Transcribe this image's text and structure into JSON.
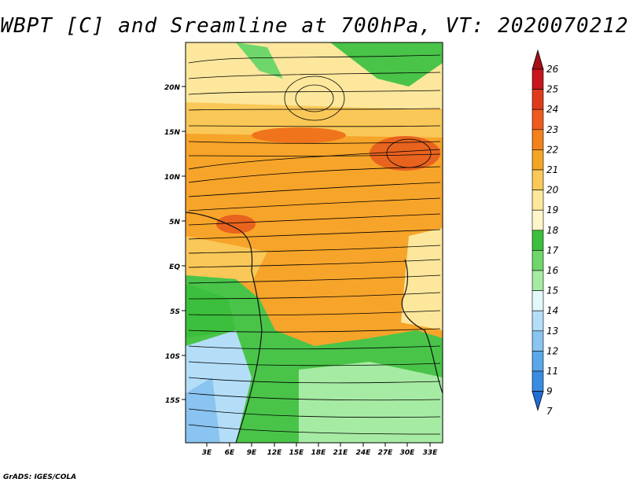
{
  "title": "WBPT [C] and Sreamline at 700hPa, VT: 2020070212",
  "credit": "GrADS: IGES/COLA",
  "map": {
    "lat_labels": [
      "20N",
      "15N",
      "10N",
      "5N",
      "EQ",
      "5S",
      "10S",
      "15S"
    ],
    "lon_labels": [
      "3E",
      "6E",
      "9E",
      "12E",
      "15E",
      "18E",
      "21E",
      "24E",
      "27E",
      "30E",
      "33E"
    ]
  },
  "colorbar": {
    "levels": [
      "26",
      "25",
      "24",
      "23",
      "22",
      "21",
      "20",
      "19",
      "18",
      "17",
      "16",
      "15",
      "14",
      "13",
      "12",
      "11",
      "9",
      "7"
    ],
    "colors": [
      "#a50f15",
      "#c8141c",
      "#e03a1c",
      "#f05a1e",
      "#f3811c",
      "#f5a526",
      "#fac858",
      "#fde79c",
      "#fff6c9",
      "#3cbf3c",
      "#6fd66c",
      "#a6eba3",
      "#e3f8f8",
      "#b4def8",
      "#8ac4f0",
      "#5aa8ea",
      "#3a8ce2",
      "#1e6fd8"
    ]
  }
}
